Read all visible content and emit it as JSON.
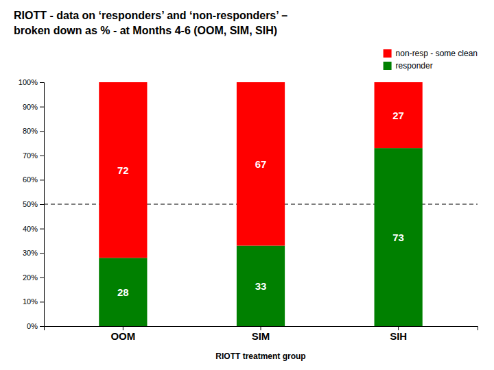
{
  "chart_data": {
    "type": "bar",
    "stacked": true,
    "data_labels": true,
    "title": "RIOTT - data on ‘responders’ and ‘non-responders’ –",
    "subtitle": "broken down as % - at Months 4-6 (OOM, SIM, SIH)",
    "xlabel": "RIOTT treatment group",
    "categories": [
      "OOM",
      "SIM",
      "SIH"
    ],
    "series": [
      {
        "name": "responder",
        "color": "#008000",
        "values": [
          28,
          33,
          73
        ]
      },
      {
        "name": "non-resp - some clean",
        "color": "#ff0000",
        "values": [
          72,
          67,
          27
        ]
      }
    ],
    "label_color": "#ffffff",
    "hlines": [
      {
        "y": 50,
        "line_style": "dashed",
        "color": "#000000"
      }
    ],
    "ylim": [
      0,
      100
    ],
    "yticks": [
      {
        "value": 0,
        "label": "0%"
      },
      {
        "value": 10,
        "label": "10%"
      },
      {
        "value": 20,
        "label": "20%"
      },
      {
        "value": 30,
        "label": "30%"
      },
      {
        "value": 40,
        "label": "40%"
      },
      {
        "value": 50,
        "label": "50%"
      },
      {
        "value": 60,
        "label": "60%"
      },
      {
        "value": 70,
        "label": "70%"
      },
      {
        "value": 80,
        "label": "80%"
      },
      {
        "value": 90,
        "label": "90%"
      },
      {
        "value": 100,
        "label": "100%"
      }
    ],
    "grid": false,
    "legend": "upper right"
  }
}
